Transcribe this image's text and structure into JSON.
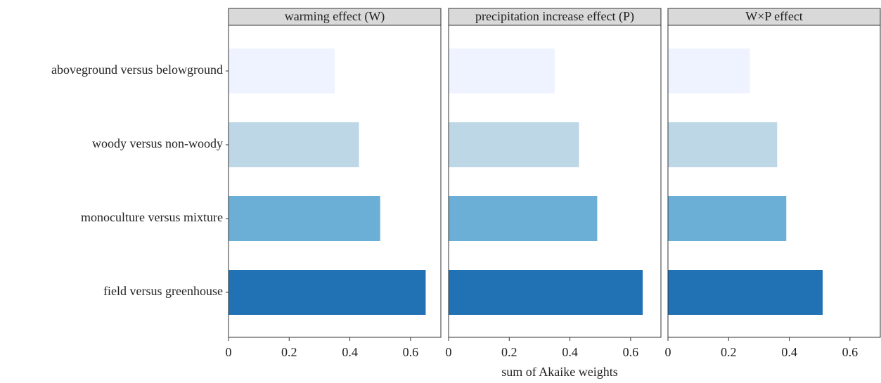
{
  "chart_data": {
    "type": "bar",
    "orientation": "horizontal",
    "xlabel": "sum of Akaike weights",
    "categories": [
      "aboveground versus belowground",
      "woody versus non-woody",
      "monoculture versus mixture",
      "field versus greenhouse"
    ],
    "colors": [
      "#eff3ff",
      "#bdd7e7",
      "#6baed6",
      "#2171b5"
    ],
    "xlim": [
      0,
      0.7
    ],
    "xticks": [
      0,
      0.2,
      0.4,
      0.6
    ],
    "panels": [
      {
        "title": "warming effect (W)",
        "values": [
          0.35,
          0.43,
          0.5,
          0.65
        ]
      },
      {
        "title": "precipitation increase effect (P)",
        "values": [
          0.35,
          0.43,
          0.49,
          0.64
        ]
      },
      {
        "title": "W×P effect",
        "values": [
          0.27,
          0.36,
          0.39,
          0.51
        ]
      }
    ]
  }
}
